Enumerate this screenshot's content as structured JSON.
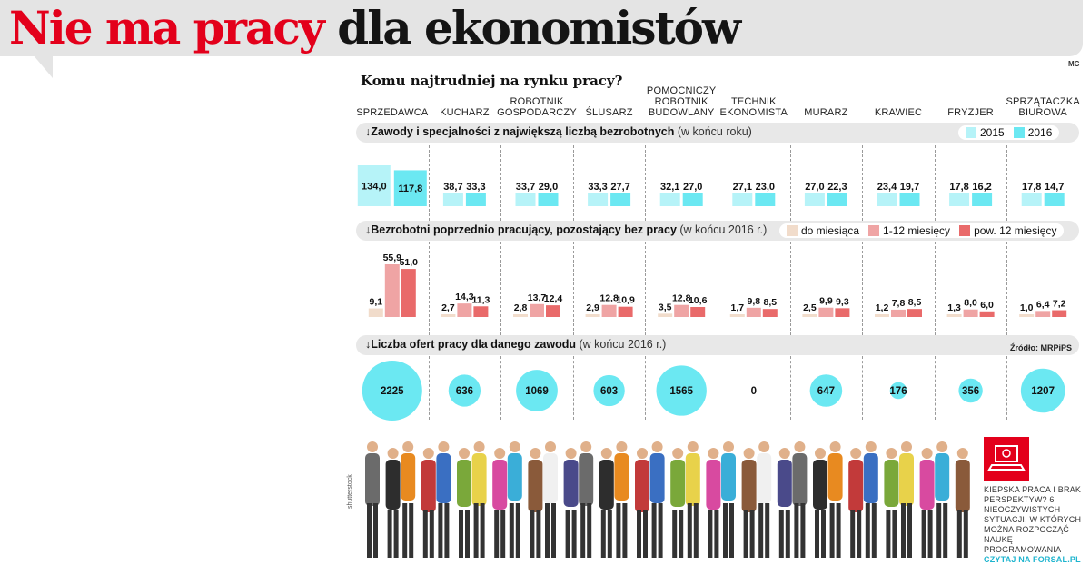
{
  "headline": {
    "part_red": "Nie ma pracy",
    "part_dark": "dla ekonomistów"
  },
  "author": "MC",
  "subtitle": "Komu najtrudniej na rynku pracy?",
  "source": "Źródło: MRPiPS",
  "colors": {
    "accent_red": "#e3001b",
    "cyan_2015": "#b6f3f8",
    "cyan_2016": "#6be8f2",
    "circle": "#6be8f2",
    "bar_lt1m": "#f1dccb",
    "bar_1_12m": "#efa4a4",
    "bar_gt12m": "#e96a6a"
  },
  "columns": [
    "SPRZEDAWCA",
    "KUCHARZ",
    "ROBOTNIK\nGOSPODARCZY",
    "ŚLUSARZ",
    "POMOCNICZY\nROBOTNIK\nBUDOWLANY",
    "TECHNIK\nEKONOMISTA",
    "MURARZ",
    "KRAWIEC",
    "FRYZJER",
    "SPRZĄTACZKA\nBIUROWA"
  ],
  "sections": {
    "s1": {
      "bold": "Zawody i specjalności  z największą liczbą bezrobotnych",
      "note": " (w końcu roku)"
    },
    "s2": {
      "bold": "Bezrobotni poprzednio pracujący, pozostający bez pracy",
      "note": " (w końcu 2016 r.)"
    },
    "s3": {
      "bold": "Liczba ofert pracy dla danego zawodu",
      "note": " (w końcu 2016 r.)"
    }
  },
  "legend1": [
    "2015",
    "2016"
  ],
  "legend2": [
    "do miesiąca",
    "1-12 miesięcy",
    "pow. 12 miesięcy"
  ],
  "chart_data": [
    {
      "type": "bar",
      "title": "Zawody i specjalności  z największą liczbą bezrobotnych (w końcu roku)",
      "categories": [
        "SPRZEDAWCA",
        "KUCHARZ",
        "ROBOTNIK GOSPODARCZY",
        "ŚLUSARZ",
        "POMOCNICZY ROBOTNIK BUDOWLANY",
        "TECHNIK EKONOMISTA",
        "MURARZ",
        "KRAWIEC",
        "FRYZJER",
        "SPRZĄTACZKA BIUROWA"
      ],
      "series": [
        {
          "name": "2015",
          "values": [
            134.0,
            38.7,
            33.7,
            33.3,
            32.1,
            27.1,
            27.0,
            23.4,
            17.8,
            17.8
          ]
        },
        {
          "name": "2016",
          "values": [
            117.8,
            33.3,
            29.0,
            27.7,
            27.0,
            23.0,
            22.3,
            19.7,
            16.2,
            14.7
          ]
        }
      ]
    },
    {
      "type": "bar",
      "title": "Bezrobotni poprzednio pracujący, pozostający bez pracy (w końcu 2016 r.)",
      "categories": [
        "SPRZEDAWCA",
        "KUCHARZ",
        "ROBOTNIK GOSPODARCZY",
        "ŚLUSARZ",
        "POMOCNICZY ROBOTNIK BUDOWLANY",
        "TECHNIK EKONOMISTA",
        "MURARZ",
        "KRAWIEC",
        "FRYZJER",
        "SPRZĄTACZKA BIUROWA"
      ],
      "series": [
        {
          "name": "do miesiąca",
          "values": [
            9.1,
            2.7,
            2.8,
            2.9,
            3.5,
            1.7,
            2.5,
            1.2,
            1.3,
            1.0
          ]
        },
        {
          "name": "1-12 miesięcy",
          "values": [
            55.9,
            14.3,
            13.7,
            12.8,
            12.8,
            9.8,
            9.9,
            7.8,
            8.0,
            6.4
          ]
        },
        {
          "name": "pow. 12 miesięcy",
          "values": [
            51.0,
            11.3,
            12.4,
            10.9,
            10.6,
            8.5,
            9.3,
            8.5,
            6.0,
            7.2
          ]
        }
      ]
    },
    {
      "type": "bubble",
      "title": "Liczba ofert pracy dla danego zawodu (w końcu 2016 r.)",
      "categories": [
        "SPRZEDAWCA",
        "KUCHARZ",
        "ROBOTNIK GOSPODARCZY",
        "ŚLUSARZ",
        "POMOCNICZY ROBOTNIK BUDOWLANY",
        "TECHNIK EKONOMISTA",
        "MURARZ",
        "KRAWIEC",
        "FRYZJER",
        "SPRZĄTACZKA BIUROWA"
      ],
      "values": [
        2225,
        636,
        1069,
        603,
        1565,
        0,
        647,
        176,
        356,
        1207
      ]
    }
  ],
  "promo": {
    "text": "KIEPSKA PRACA I BRAK PERSPEKTYW? 6 NIEOCZYWISTYCH SYTUACJI, W KTÓRYCH MOŻNA ROZPOCZĄĆ NAUKĘ PROGRAMOWANIA",
    "link": "CZYTAJ NA FORSAL.PL"
  },
  "photo_credit": "shutterstock"
}
